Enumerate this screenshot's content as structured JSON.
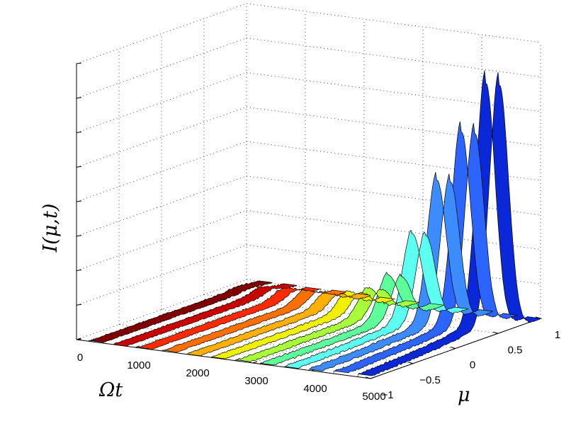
{
  "chart_data": {
    "type": "area",
    "title": "",
    "xlabel": "Ωt",
    "ylabel": "μ",
    "zlabel": "I(μ,t)",
    "t_ticks": [
      0,
      1000,
      2000,
      3000,
      4000,
      5000
    ],
    "t_tick_labels": [
      "0",
      "1000",
      "2000",
      "3000",
      "4000",
      "5000"
    ],
    "mu_ticks": [
      -1,
      -0.5,
      0,
      0.5,
      1
    ],
    "mu_tick_labels": [
      "−1",
      "−0.5",
      "0",
      "0.5",
      "1"
    ],
    "mu_range": [
      -1,
      1
    ],
    "t_range": [
      0,
      5000
    ],
    "z_range": [
      0,
      1
    ],
    "grid": true,
    "series": [
      {
        "time_index": 1,
        "color": "#800000",
        "peak": 0.01,
        "peak_mu": 0.75
      },
      {
        "time_index": 2,
        "color": "#c80000",
        "peak": 0.02,
        "peak_mu": 0.73
      },
      {
        "time_index": 3,
        "color": "#ff2a00",
        "peak": 0.03,
        "peak_mu": 0.7
      },
      {
        "time_index": 4,
        "color": "#ff7000",
        "peak": 0.04,
        "peak_mu": 0.67
      },
      {
        "time_index": 5,
        "color": "#ffb000",
        "peak": 0.05,
        "peak_mu": 0.63
      },
      {
        "time_index": 6,
        "color": "#f0f000",
        "peak": 0.07,
        "peak_mu": 0.6
      },
      {
        "time_index": 7,
        "color": "#a8ff38",
        "peak": 0.1,
        "peak_mu": 0.55
      },
      {
        "time_index": 8,
        "color": "#5cff9a",
        "peak": 0.17,
        "peak_mu": 0.5
      },
      {
        "time_index": 9,
        "color": "#5cfff0",
        "peak": 0.34,
        "peak_mu": 0.5
      },
      {
        "time_index": 10,
        "color": "#3c8cff",
        "peak": 0.56,
        "peak_mu": 0.5
      },
      {
        "time_index": 11,
        "color": "#2c64ff",
        "peak": 0.76,
        "peak_mu": 0.5
      },
      {
        "time_index": 12,
        "color": "#0a28d8",
        "peak": 0.96,
        "peak_mu": 0.5
      }
    ]
  }
}
